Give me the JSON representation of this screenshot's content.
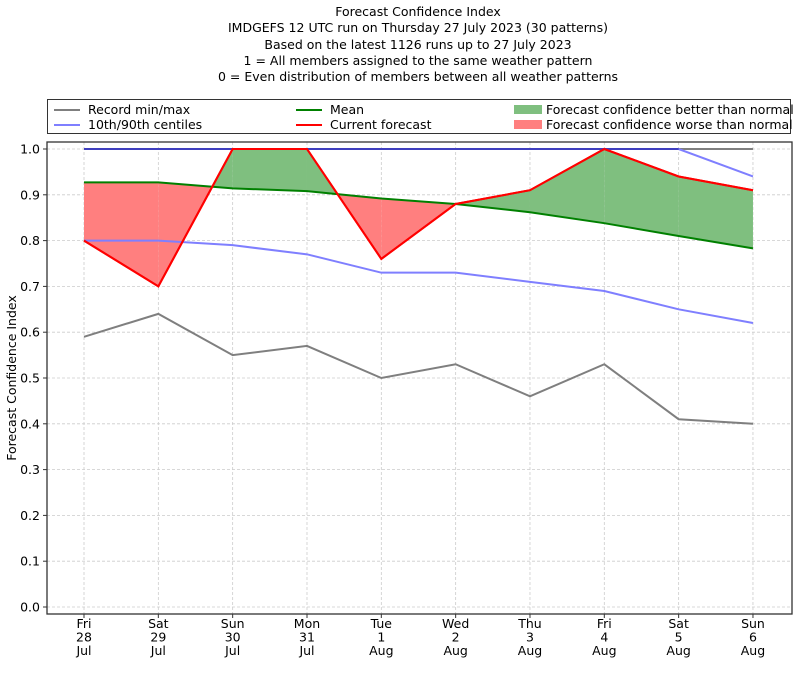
{
  "chart_data": {
    "type": "line",
    "title": "Forecast Confidence Index",
    "subtitle_lines": [
      "IMDGEFS 12 UTC run on Thursday 27 July 2023 (30 patterns)",
      "Based on the latest 1126 runs up to 27 July 2023",
      "1 = All members assigned to the same weather pattern",
      "0 = Even distribution of members between all weather patterns"
    ],
    "xlabel": "",
    "ylabel": "Forecast Confidence Index",
    "ylim": [
      0.0,
      1.0
    ],
    "yticks": [
      "0.0",
      "0.1",
      "0.2",
      "0.3",
      "0.4",
      "0.5",
      "0.6",
      "0.7",
      "0.8",
      "0.9",
      "1.0"
    ],
    "grid": true,
    "legend_position": "top",
    "categories": [
      [
        "Fri",
        "28",
        "Jul"
      ],
      [
        "Sat",
        "29",
        "Jul"
      ],
      [
        "Sun",
        "30",
        "Jul"
      ],
      [
        "Mon",
        "31",
        "Jul"
      ],
      [
        "Tue",
        "1",
        "Aug"
      ],
      [
        "Wed",
        "2",
        "Aug"
      ],
      [
        "Thu",
        "3",
        "Aug"
      ],
      [
        "Fri",
        "4",
        "Aug"
      ],
      [
        "Sat",
        "5",
        "Aug"
      ],
      [
        "Sun",
        "6",
        "Aug"
      ]
    ],
    "series": [
      {
        "name": "Record min/max",
        "key": "record_min",
        "color": "#7f7f7f",
        "values": [
          0.59,
          0.64,
          0.55,
          0.57,
          0.5,
          0.53,
          0.46,
          0.53,
          0.41,
          0.4
        ]
      },
      {
        "name": "Record max",
        "key": "record_max",
        "color": "#7f7f7f",
        "values": [
          1.0,
          1.0,
          1.0,
          1.0,
          1.0,
          1.0,
          1.0,
          1.0,
          1.0,
          1.0
        ]
      },
      {
        "name": "10th/90th centiles",
        "key": "p10",
        "color": "#7f7fff",
        "values": [
          0.8,
          0.8,
          0.79,
          0.77,
          0.73,
          0.73,
          0.71,
          0.69,
          0.65,
          0.62
        ]
      },
      {
        "name": "90th centile",
        "key": "p90",
        "color": "#7f7fff",
        "values": [
          1.0,
          1.0,
          1.0,
          1.0,
          1.0,
          1.0,
          1.0,
          1.0,
          1.0,
          0.94
        ]
      },
      {
        "name": "Mean",
        "key": "mean",
        "color": "#008000",
        "values": [
          0.927,
          0.927,
          0.914,
          0.908,
          0.892,
          0.88,
          0.862,
          0.838,
          0.81,
          0.783
        ]
      },
      {
        "name": "Current forecast",
        "key": "current",
        "color": "#ff0000",
        "values": [
          0.8,
          0.7,
          1.0,
          1.0,
          0.76,
          0.88,
          0.91,
          1.0,
          0.94,
          0.91
        ]
      }
    ],
    "fills": [
      {
        "name": "Forecast confidence better than normal",
        "color": "#7fbf7f"
      },
      {
        "name": "Forecast confidence worse than normal",
        "color": "#ff7f7f"
      }
    ]
  },
  "legend": {
    "record": "Record min/max",
    "centiles": "10th/90th centiles",
    "mean": "Mean",
    "current": "Current forecast",
    "better": "Forecast confidence better than normal",
    "worse": "Forecast confidence worse than normal"
  }
}
